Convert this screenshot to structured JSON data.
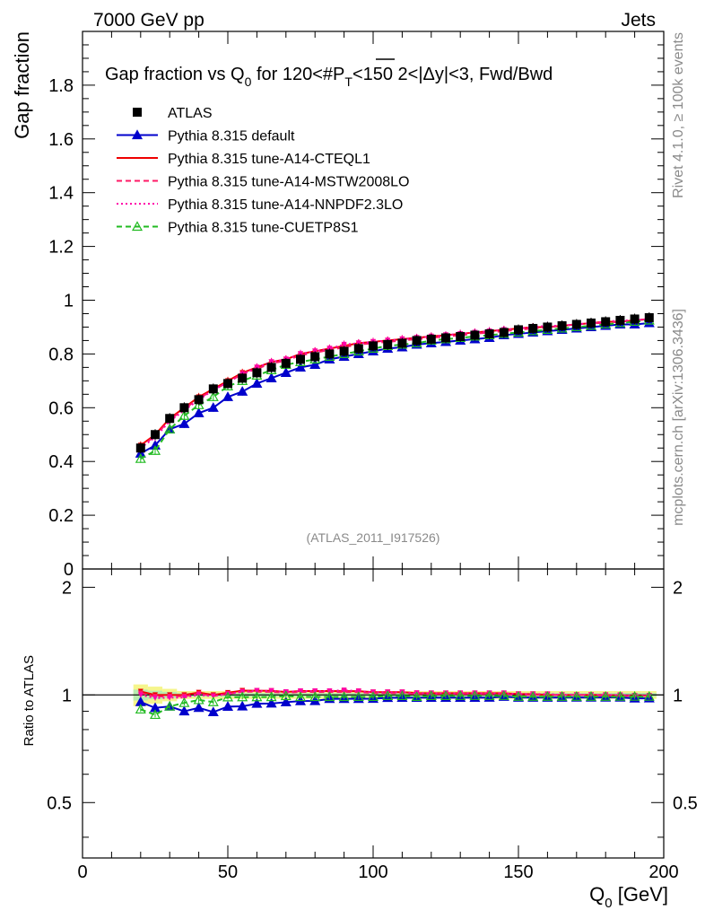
{
  "header": {
    "left": "7000 GeV pp",
    "right": "Jets"
  },
  "side_labels": {
    "rivet": "Rivet 4.1.0, ≥ 100k events",
    "mcplots": "mcplots.cern.ch [arXiv:1306.3436]"
  },
  "chart_data": {
    "type": "line",
    "title_parts": {
      "a": "Gap fraction vs Q",
      "a_sub": "0",
      "b": " for 120<#",
      "b_over": "P",
      "b_sub": "T",
      "c": "<150  2<|Δy|<3, Fwd/Bwd"
    },
    "analysis_id": "(ATLAS_2011_I917526)",
    "xlabel": "Q",
    "xlabel_sub": "0",
    "xlabel_unit": " [GeV]",
    "ylabel_main": "Gap fraction",
    "ylabel_ratio": "Ratio to ATLAS",
    "xlim": [
      0,
      200
    ],
    "ylim_main": [
      0,
      2
    ],
    "ylim_ratio": [
      0.35,
      2.25
    ],
    "x_ticks": [
      "0",
      "50",
      "100",
      "150",
      "200"
    ],
    "y_ticks_main": [
      "0",
      "0.2",
      "0.4",
      "0.6",
      "0.8",
      "1",
      "1.2",
      "1.4",
      "1.6",
      "1.8"
    ],
    "y_ticks_ratio": [
      "0.5",
      "1",
      "2"
    ],
    "x": [
      20,
      25,
      30,
      35,
      40,
      45,
      50,
      55,
      60,
      65,
      70,
      75,
      80,
      85,
      90,
      95,
      100,
      105,
      110,
      115,
      120,
      125,
      130,
      135,
      140,
      145,
      150,
      155,
      160,
      165,
      170,
      175,
      180,
      185,
      190,
      195
    ],
    "series": [
      {
        "name": "ATLAS",
        "color": "#000000",
        "style": "data",
        "values": [
          0.45,
          0.5,
          0.56,
          0.6,
          0.63,
          0.67,
          0.69,
          0.71,
          0.73,
          0.75,
          0.765,
          0.78,
          0.79,
          0.8,
          0.81,
          0.82,
          0.83,
          0.835,
          0.84,
          0.85,
          0.855,
          0.86,
          0.865,
          0.87,
          0.875,
          0.88,
          0.89,
          0.895,
          0.9,
          0.905,
          0.91,
          0.915,
          0.92,
          0.925,
          0.93,
          0.935
        ]
      },
      {
        "name": "Pythia 8.315 default",
        "color": "#0000cc",
        "style": "solid-tri",
        "values": [
          0.43,
          0.46,
          0.52,
          0.54,
          0.58,
          0.6,
          0.64,
          0.66,
          0.69,
          0.71,
          0.73,
          0.75,
          0.76,
          0.78,
          0.79,
          0.8,
          0.81,
          0.82,
          0.825,
          0.835,
          0.84,
          0.845,
          0.85,
          0.855,
          0.86,
          0.87,
          0.875,
          0.88,
          0.885,
          0.89,
          0.895,
          0.9,
          0.905,
          0.91,
          0.91,
          0.915
        ]
      },
      {
        "name": "Pythia 8.315 tune-A14-CTEQL1",
        "color": "#ee0000",
        "style": "solid",
        "values": [
          0.46,
          0.5,
          0.56,
          0.6,
          0.64,
          0.67,
          0.7,
          0.73,
          0.75,
          0.77,
          0.78,
          0.8,
          0.81,
          0.82,
          0.83,
          0.84,
          0.845,
          0.85,
          0.855,
          0.86,
          0.865,
          0.87,
          0.875,
          0.88,
          0.885,
          0.89,
          0.895,
          0.9,
          0.9,
          0.905,
          0.91,
          0.915,
          0.92,
          0.92,
          0.925,
          0.93
        ]
      },
      {
        "name": "Pythia 8.315 tune-A14-MSTW2008LO",
        "color": "#ff1a66",
        "style": "dashed",
        "values": [
          0.455,
          0.495,
          0.555,
          0.595,
          0.635,
          0.665,
          0.695,
          0.725,
          0.745,
          0.765,
          0.775,
          0.795,
          0.805,
          0.815,
          0.825,
          0.835,
          0.84,
          0.845,
          0.85,
          0.855,
          0.86,
          0.865,
          0.87,
          0.875,
          0.88,
          0.885,
          0.89,
          0.895,
          0.9,
          0.905,
          0.91,
          0.915,
          0.915,
          0.92,
          0.925,
          0.93
        ]
      },
      {
        "name": "Pythia 8.315 tune-A14-NNPDF2.3LO",
        "color": "#ff00aa",
        "style": "dotted",
        "values": [
          0.45,
          0.49,
          0.55,
          0.59,
          0.63,
          0.665,
          0.695,
          0.725,
          0.75,
          0.77,
          0.78,
          0.8,
          0.81,
          0.82,
          0.835,
          0.84,
          0.845,
          0.85,
          0.855,
          0.86,
          0.865,
          0.87,
          0.875,
          0.88,
          0.885,
          0.89,
          0.895,
          0.9,
          0.905,
          0.905,
          0.91,
          0.915,
          0.92,
          0.925,
          0.925,
          0.93
        ]
      },
      {
        "name": "Pythia 8.315 tune-CUETP8S1",
        "color": "#22bb22",
        "style": "dashed-tri",
        "values": [
          0.41,
          0.44,
          0.52,
          0.57,
          0.61,
          0.64,
          0.68,
          0.7,
          0.72,
          0.74,
          0.76,
          0.77,
          0.78,
          0.79,
          0.8,
          0.81,
          0.82,
          0.83,
          0.835,
          0.84,
          0.85,
          0.855,
          0.86,
          0.865,
          0.87,
          0.875,
          0.88,
          0.885,
          0.89,
          0.895,
          0.9,
          0.905,
          0.91,
          0.915,
          0.92,
          0.925
        ]
      }
    ]
  }
}
